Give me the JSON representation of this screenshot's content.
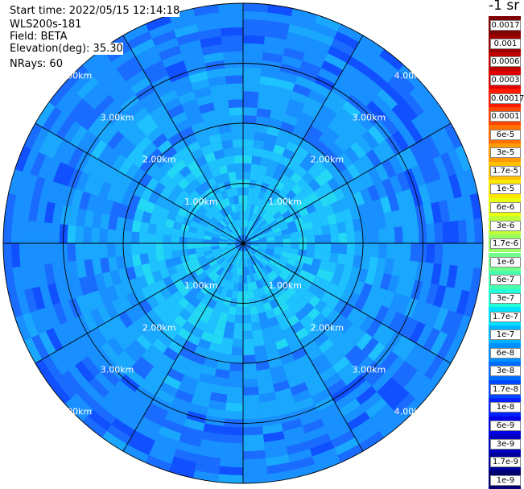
{
  "header": {
    "start_time": "Start time: 2022/05/15 12:14:18",
    "instrument": "WLS200s-181",
    "field": "Field: BETA",
    "elevation": "Elevation(deg): 35.30",
    "nrays": "NRays: 60"
  },
  "colorbar": {
    "unit": "-1 sr",
    "labels": [
      "0.0017",
      "0.001",
      "0.0006",
      "0.0003",
      "0.00017",
      "0.0001",
      "6e-5",
      "3e-5",
      "1.7e-5",
      "1e-5",
      "6e-6",
      "3e-6",
      "1.7e-6",
      "1e-6",
      "6e-7",
      "3e-7",
      "1.7e-7",
      "1e-7",
      "6e-8",
      "3e-8",
      "1.7e-8",
      "1e-8",
      "6e-9",
      "3e-9",
      "1.7e-9",
      "1e-9"
    ],
    "colors": [
      "#7f0000",
      "#9a0000",
      "#c00000",
      "#e00000",
      "#ff1a00",
      "#ff4500",
      "#ff7000",
      "#ff9a00",
      "#ffc000",
      "#ffe600",
      "#e8ff10",
      "#c0ff38",
      "#98ff60",
      "#70ff88",
      "#48ffb0",
      "#20ffd8",
      "#00e0ff",
      "#00b4ff",
      "#0090ff",
      "#006cff",
      "#0048ff",
      "#0020ff",
      "#0000e6",
      "#0000c0",
      "#00009a",
      "#000070"
    ]
  },
  "rings": {
    "labels": [
      "1.00km",
      "2.00km",
      "3.00km",
      "4.00km"
    ]
  },
  "ppi": {
    "palette": [
      "#0a2aff",
      "#1150ff",
      "#1a6cff",
      "#1890ff",
      "#1aa8ff",
      "#1ec2ff",
      "#22d8f4",
      "#2be9e4"
    ]
  }
}
